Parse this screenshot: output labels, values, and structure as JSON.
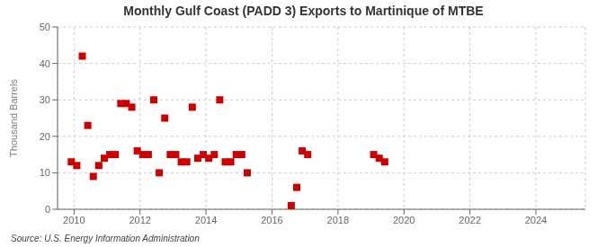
{
  "chart_data": {
    "type": "scatter",
    "title": "Monthly Gulf Coast (PADD 3) Exports to Martinique of MTBE",
    "ylabel": "Thousand Barrels",
    "annotation": "Source: U.S. Energy Information Administration",
    "x": [
      2009.917,
      2010.083,
      2010.25,
      2010.417,
      2010.583,
      2010.75,
      2010.917,
      2011.083,
      2011.25,
      2011.417,
      2011.583,
      2011.75,
      2011.917,
      2012.083,
      2012.25,
      2012.417,
      2012.583,
      2012.75,
      2012.917,
      2013.083,
      2013.25,
      2013.417,
      2013.583,
      2013.75,
      2013.917,
      2014.083,
      2014.25,
      2014.417,
      2014.583,
      2014.75,
      2014.917,
      2015.083,
      2015.25,
      2016.583,
      2016.75,
      2016.917,
      2017.083,
      2019.083,
      2019.25,
      2019.417
    ],
    "values": [
      13,
      12,
      42,
      23,
      9,
      12,
      14,
      15,
      15,
      29,
      29,
      28,
      16,
      15,
      15,
      30,
      10,
      25,
      15,
      15,
      13,
      13,
      28,
      14,
      15,
      14,
      15,
      30,
      13,
      13,
      15,
      15,
      10,
      1,
      6,
      16,
      15,
      15,
      14,
      13
    ],
    "color": "#cc0000",
    "marker": "square",
    "xlim": [
      2009.5,
      2025.5
    ],
    "xticks": [
      2010,
      2012,
      2014,
      2016,
      2018,
      2020,
      2022,
      2024
    ],
    "ylim": [
      0,
      50
    ],
    "yticks": [
      0,
      10,
      20,
      30,
      40,
      50
    ],
    "grid": true
  }
}
